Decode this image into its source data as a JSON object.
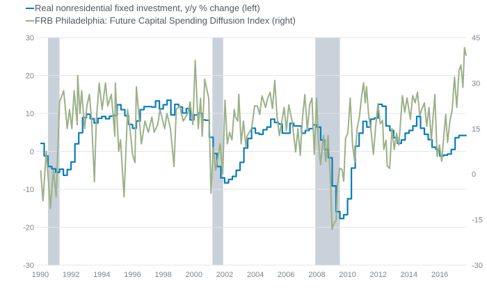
{
  "legend": [
    {
      "label": "Real nonresidential fixed investment, y/y % change (left)",
      "color": "#0a7db8"
    },
    {
      "label": "FRB Philadelphia: Future Capital Spending Diffusion Index (right)",
      "color": "#9bb088"
    }
  ],
  "chart_data": {
    "type": "line",
    "title": "",
    "xlabel": "",
    "grid": true,
    "legend_position": "top-left",
    "x_ticks": [
      "1990",
      "1992",
      "1994",
      "1996",
      "1998",
      "2000",
      "2002",
      "2004",
      "2006",
      "2008",
      "2010",
      "2012",
      "2014",
      "2016"
    ],
    "x_range": [
      1990,
      2018
    ],
    "left_axis": {
      "range": [
        -30,
        30
      ],
      "ticks": [
        "30",
        "20",
        "10",
        "0",
        "-10",
        "-20",
        "-30"
      ]
    },
    "right_axis": {
      "range": [
        -30,
        45
      ],
      "ticks": [
        "45",
        "30",
        "15",
        "0",
        "-15",
        "-30"
      ]
    },
    "recession_color": "#c9d1da",
    "recessions": [
      [
        1990.5,
        1991.25
      ],
      [
        2001.2,
        2001.9
      ],
      [
        2007.9,
        2009.5
      ]
    ],
    "series": [
      {
        "name": "Real nonresidential fixed investment, y/y % change (left)",
        "axis": "left",
        "color": "#0a7db8",
        "step": true,
        "points": [
          [
            1990,
            2.1
          ],
          [
            1990.25,
            -1.2
          ],
          [
            1990.5,
            -4
          ],
          [
            1990.75,
            -4.6
          ],
          [
            1991,
            -5.5
          ],
          [
            1991.25,
            -4.7
          ],
          [
            1991.5,
            -6.3
          ],
          [
            1991.75,
            -4.8
          ],
          [
            1992,
            -2.8
          ],
          [
            1992.25,
            2
          ],
          [
            1992.5,
            4.9
          ],
          [
            1992.75,
            8.9
          ],
          [
            1993,
            9.8
          ],
          [
            1993.25,
            8.6
          ],
          [
            1993.5,
            7.5
          ],
          [
            1993.75,
            8.7
          ],
          [
            1994,
            9.2
          ],
          [
            1994.25,
            8.6
          ],
          [
            1994.5,
            9.3
          ],
          [
            1994.75,
            9.5
          ],
          [
            1995,
            12.3
          ],
          [
            1995.25,
            11
          ],
          [
            1995.5,
            9.4
          ],
          [
            1995.75,
            7.1
          ],
          [
            1996,
            6.1
          ],
          [
            1996.25,
            8
          ],
          [
            1996.5,
            11
          ],
          [
            1996.75,
            11.8
          ],
          [
            1997,
            11.8
          ],
          [
            1997.25,
            11.7
          ],
          [
            1997.5,
            13.3
          ],
          [
            1997.75,
            11.2
          ],
          [
            1998,
            12.3
          ],
          [
            1998.25,
            13.5
          ],
          [
            1998.5,
            9.6
          ],
          [
            1998.75,
            12.4
          ],
          [
            1999,
            11.7
          ],
          [
            1999.25,
            10.1
          ],
          [
            1999.5,
            11.3
          ],
          [
            1999.75,
            8.3
          ],
          [
            2000,
            9.6
          ],
          [
            2000.25,
            10.1
          ],
          [
            2000.5,
            8.3
          ],
          [
            2000.75,
            8.2
          ],
          [
            2001,
            3.7
          ],
          [
            2001.25,
            -0.6
          ],
          [
            2001.5,
            -4
          ],
          [
            2001.75,
            -7
          ],
          [
            2002,
            -8.3
          ],
          [
            2002.25,
            -7.4
          ],
          [
            2002.5,
            -6.6
          ],
          [
            2002.75,
            -5
          ],
          [
            2003,
            -2.9
          ],
          [
            2003.25,
            0.9
          ],
          [
            2003.5,
            3.4
          ],
          [
            2003.75,
            6.1
          ],
          [
            2004,
            4.8
          ],
          [
            2004.25,
            4.5
          ],
          [
            2004.5,
            5.7
          ],
          [
            2004.75,
            6.4
          ],
          [
            2005,
            8.5
          ],
          [
            2005.25,
            7.6
          ],
          [
            2005.5,
            7.2
          ],
          [
            2005.75,
            4.8
          ],
          [
            2006,
            4.8
          ],
          [
            2006.25,
            7.4
          ],
          [
            2006.5,
            6.7
          ],
          [
            2006.75,
            6.7
          ],
          [
            2007,
            4.8
          ],
          [
            2007.25,
            5.5
          ],
          [
            2007.5,
            6
          ],
          [
            2007.75,
            7
          ],
          [
            2008,
            6.4
          ],
          [
            2008.25,
            3
          ],
          [
            2008.5,
            0.5
          ],
          [
            2008.75,
            -1.7
          ],
          [
            2009,
            -9.1
          ],
          [
            2009.25,
            -15.9
          ],
          [
            2009.5,
            -17.7
          ],
          [
            2009.75,
            -16.7
          ],
          [
            2010,
            -12.5
          ],
          [
            2010.25,
            -4.4
          ],
          [
            2010.5,
            1.4
          ],
          [
            2010.75,
            4.8
          ],
          [
            2011,
            7.9
          ],
          [
            2011.25,
            6.4
          ],
          [
            2011.5,
            8.5
          ],
          [
            2011.75,
            8.8
          ],
          [
            2012,
            12.4
          ],
          [
            2012.25,
            11.9
          ],
          [
            2012.5,
            6.7
          ],
          [
            2012.75,
            5.5
          ],
          [
            2013,
            3.6
          ],
          [
            2013.25,
            2.1
          ],
          [
            2013.5,
            3
          ],
          [
            2013.75,
            4.8
          ],
          [
            2014,
            5.5
          ],
          [
            2014.25,
            6.7
          ],
          [
            2014.5,
            9.2
          ],
          [
            2014.75,
            6.1
          ],
          [
            2015,
            4.5
          ],
          [
            2015.25,
            3.1
          ],
          [
            2015.5,
            1.1
          ],
          [
            2015.75,
            0.5
          ],
          [
            2016,
            -1.2
          ],
          [
            2016.25,
            -1
          ],
          [
            2016.5,
            -0.7
          ],
          [
            2016.75,
            0.5
          ],
          [
            2017,
            3.6
          ],
          [
            2017.25,
            4.2
          ],
          [
            2017.5,
            4.2
          ]
        ]
      },
      {
        "name": "FRB Philadelphia: Future Capital Spending Diffusion Index (right)",
        "axis": "right",
        "color": "#9bb088",
        "step": false,
        "points": [
          [
            1990.02,
            1.3
          ],
          [
            1990.17,
            -8.8
          ],
          [
            1990.39,
            7.5
          ],
          [
            1990.65,
            -11.3
          ],
          [
            1990.85,
            1.3
          ],
          [
            1991.03,
            -7.5
          ],
          [
            1991.15,
            10
          ],
          [
            1991.25,
            23.8
          ],
          [
            1991.52,
            27.5
          ],
          [
            1991.75,
            15
          ],
          [
            1991.9,
            21.3
          ],
          [
            1992.05,
            15
          ],
          [
            1992.2,
            27.5
          ],
          [
            1992.4,
            16.3
          ],
          [
            1992.43,
            32.5
          ],
          [
            1992.58,
            20
          ],
          [
            1992.69,
            27.5
          ],
          [
            1992.88,
            15
          ],
          [
            1993.03,
            22.5
          ],
          [
            1993.19,
            26.3
          ],
          [
            1993.34,
            17.5
          ],
          [
            1993.52,
            -2.5
          ],
          [
            1993.64,
            17.5
          ],
          [
            1993.83,
            30
          ],
          [
            1994.02,
            21.3
          ],
          [
            1994.24,
            30
          ],
          [
            1994.39,
            22.5
          ],
          [
            1994.62,
            26.3
          ],
          [
            1994.85,
            12.5
          ],
          [
            1994.88,
            30
          ],
          [
            1995.1,
            7.5
          ],
          [
            1995.22,
            11.3
          ],
          [
            1995.45,
            -7.5
          ],
          [
            1995.68,
            21.3
          ],
          [
            1995.83,
            15
          ],
          [
            1996.01,
            6.3
          ],
          [
            1996.16,
            3.8
          ],
          [
            1996.25,
            28.8
          ],
          [
            1996.58,
            10
          ],
          [
            1996.81,
            17.5
          ],
          [
            1997.03,
            13.8
          ],
          [
            1997.26,
            18.8
          ],
          [
            1997.41,
            13.8
          ],
          [
            1997.64,
            16.3
          ],
          [
            1997.79,
            21.3
          ],
          [
            1998.09,
            15
          ],
          [
            1998.24,
            20
          ],
          [
            1998.47,
            15
          ],
          [
            1998.7,
            2.5
          ],
          [
            1998.85,
            21.3
          ],
          [
            1999.07,
            22.5
          ],
          [
            1999.3,
            17.5
          ],
          [
            1999.6,
            20
          ],
          [
            1999.75,
            23.8
          ],
          [
            1999.93,
            16.3
          ],
          [
            2000.08,
            37.5
          ],
          [
            2000.28,
            15
          ],
          [
            2000.43,
            25
          ],
          [
            2000.54,
            12.5
          ],
          [
            2000.7,
            31.3
          ],
          [
            2000.96,
            25
          ],
          [
            2001.11,
            -6.3
          ],
          [
            2001.26,
            8.8
          ],
          [
            2001.41,
            1.3
          ],
          [
            2001.71,
            10
          ],
          [
            2001.87,
            0
          ],
          [
            2002.02,
            24.4
          ],
          [
            2002.17,
            10
          ],
          [
            2002.32,
            13.8
          ],
          [
            2002.47,
            11.3
          ],
          [
            2002.62,
            21.3
          ],
          [
            2002.7,
            18.8
          ],
          [
            2002.85,
            17.5
          ],
          [
            2002.92,
            26.3
          ],
          [
            2003.07,
            10
          ],
          [
            2003.22,
            17.5
          ],
          [
            2003.38,
            8.8
          ],
          [
            2003.45,
            12.5
          ],
          [
            2003.6,
            13.8
          ],
          [
            2003.75,
            15
          ],
          [
            2003.95,
            22.5
          ],
          [
            2004.13,
            22.4
          ],
          [
            2004.28,
            19.7
          ],
          [
            2004.43,
            25.8
          ],
          [
            2004.66,
            22
          ],
          [
            2004.81,
            25.1
          ],
          [
            2004.96,
            27
          ],
          [
            2005.11,
            21.6
          ],
          [
            2005.26,
            30.9
          ],
          [
            2005.41,
            18.9
          ],
          [
            2005.56,
            12.7
          ],
          [
            2005.72,
            17.4
          ],
          [
            2005.87,
            22
          ],
          [
            2006.02,
            14.3
          ],
          [
            2006.17,
            22.8
          ],
          [
            2006.39,
            17.4
          ],
          [
            2006.62,
            7.3
          ],
          [
            2006.77,
            15
          ],
          [
            2006.92,
            6.2
          ],
          [
            2007.07,
            18.9
          ],
          [
            2007.22,
            26.2
          ],
          [
            2007.38,
            14.3
          ],
          [
            2007.53,
            22.8
          ],
          [
            2007.68,
            25.1
          ],
          [
            2007.83,
            6.5
          ],
          [
            2007.98,
            25.1
          ],
          [
            2008.09,
            11.9
          ],
          [
            2008.24,
            3.1
          ],
          [
            2008.43,
            12.7
          ],
          [
            2008.58,
            4.2
          ],
          [
            2008.73,
            12.7
          ],
          [
            2008.89,
            -2
          ],
          [
            2008.99,
            -18.2
          ],
          [
            2009.11,
            -16.2
          ],
          [
            2009.26,
            -15.1
          ],
          [
            2009.34,
            -3.5
          ],
          [
            2009.49,
            1.9
          ],
          [
            2009.64,
            1.5
          ],
          [
            2009.75,
            -2.3
          ],
          [
            2009.87,
            11.9
          ],
          [
            2010.02,
            13.5
          ],
          [
            2010.17,
            25.1
          ],
          [
            2010.32,
            10
          ],
          [
            2010.47,
            3.9
          ],
          [
            2010.62,
            15
          ],
          [
            2010.77,
            18.9
          ],
          [
            2010.92,
            25.9
          ],
          [
            2011.04,
            30.1
          ],
          [
            2011.15,
            23.5
          ],
          [
            2011.23,
            28.9
          ],
          [
            2011.38,
            18.9
          ],
          [
            2011.53,
            14.3
          ],
          [
            2011.68,
            6.5
          ],
          [
            2011.83,
            15.8
          ],
          [
            2011.98,
            23.2
          ],
          [
            2012.13,
            16.6
          ],
          [
            2012.28,
            17.7
          ],
          [
            2012.36,
            8.1
          ],
          [
            2012.51,
            11.2
          ],
          [
            2012.58,
            2.7
          ],
          [
            2012.74,
            1.9
          ],
          [
            2012.89,
            15
          ],
          [
            2013.04,
            8.1
          ],
          [
            2013.19,
            13.5
          ],
          [
            2013.34,
            9.6
          ],
          [
            2013.57,
            25.9
          ],
          [
            2013.72,
            20.4
          ],
          [
            2013.87,
            25.1
          ],
          [
            2014.09,
            18.1
          ],
          [
            2014.24,
            25.9
          ],
          [
            2014.4,
            23.5
          ],
          [
            2014.55,
            27
          ],
          [
            2014.7,
            19.3
          ],
          [
            2014.85,
            21.6
          ],
          [
            2015,
            23.5
          ],
          [
            2015.15,
            15.8
          ],
          [
            2015.3,
            22
          ],
          [
            2015.45,
            11.2
          ],
          [
            2015.68,
            26.2
          ],
          [
            2015.83,
            5.8
          ],
          [
            2015.98,
            9.6
          ],
          [
            2016.13,
            4.2
          ],
          [
            2016.28,
            13.5
          ],
          [
            2016.39,
            19.7
          ],
          [
            2016.51,
            10.4
          ],
          [
            2016.66,
            17.4
          ],
          [
            2016.81,
            21.2
          ],
          [
            2016.96,
            32
          ],
          [
            2017.11,
            22
          ],
          [
            2017.26,
            34.3
          ],
          [
            2017.38,
            35.9
          ],
          [
            2017.51,
            28.6
          ],
          [
            2017.61,
            41.7
          ],
          [
            2017.72,
            39
          ]
        ]
      }
    ]
  }
}
